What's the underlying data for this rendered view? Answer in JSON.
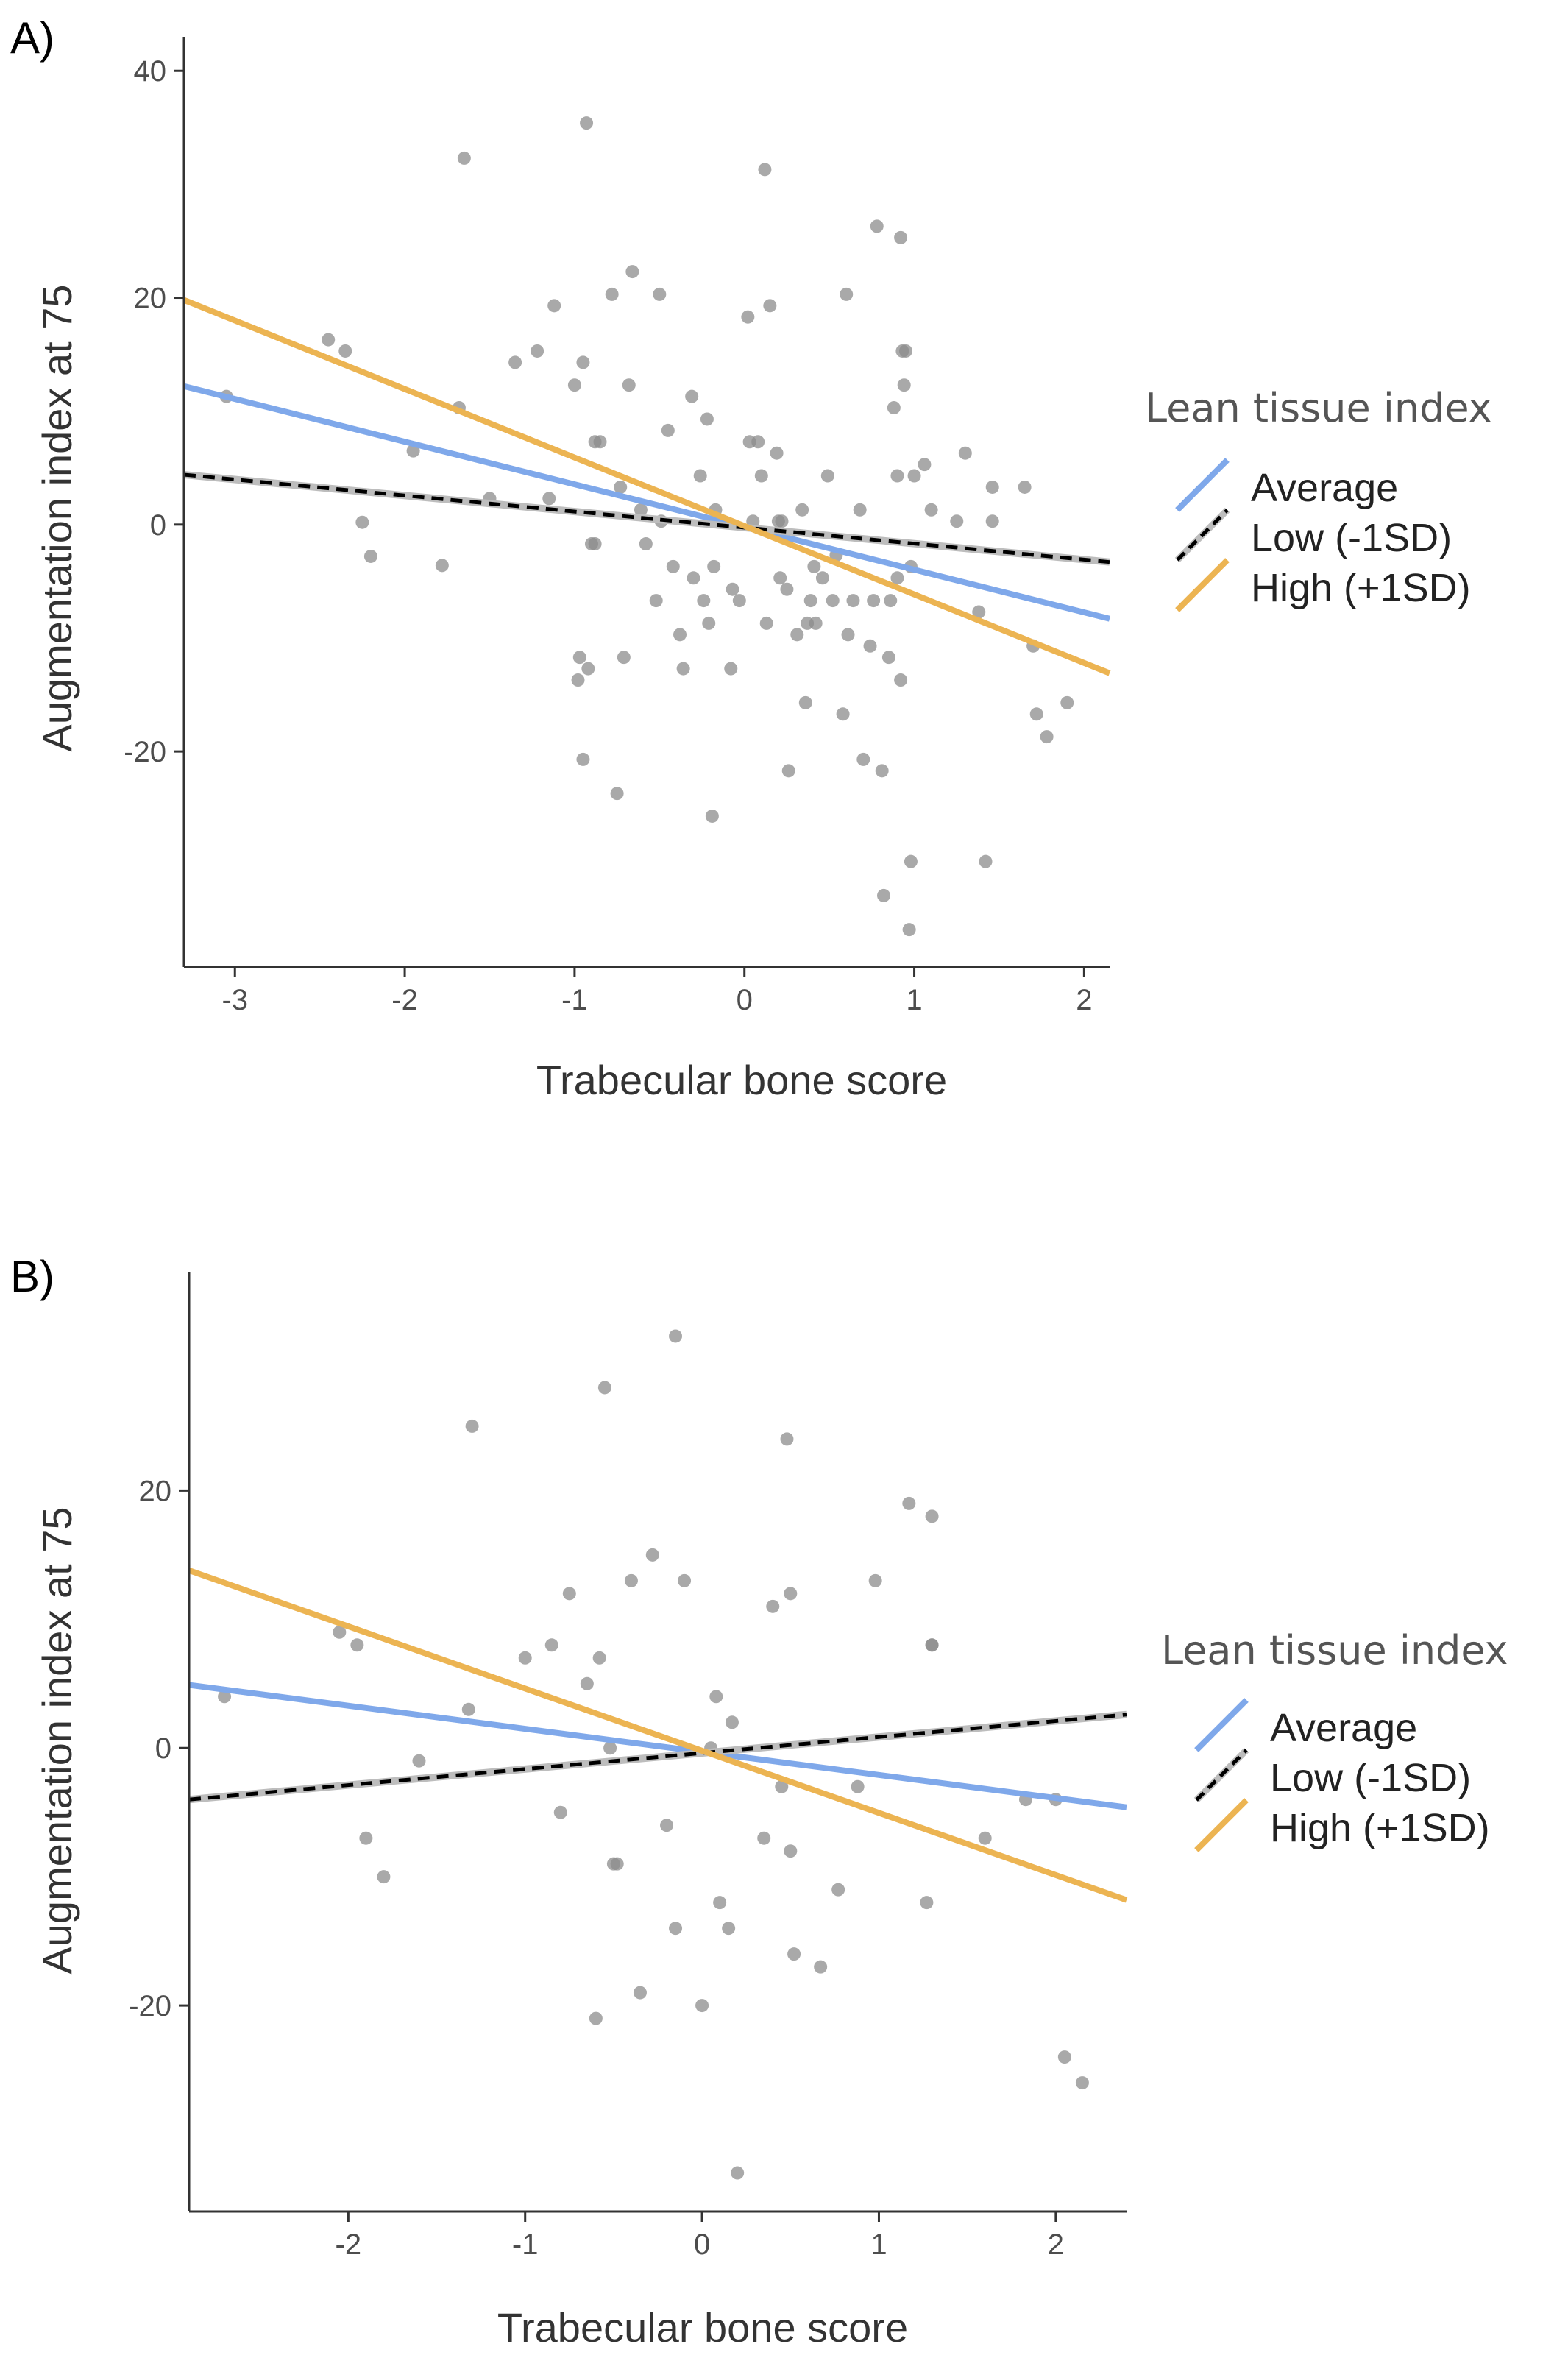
{
  "chart_data": [
    {
      "panel": "A)",
      "type": "scatter",
      "title": "",
      "xlabel": "Trabecular bone score",
      "ylabel": "Augmentation index at 75",
      "xlim": [
        -3.3,
        2.15
      ],
      "ylim": [
        -39,
        43
      ],
      "xticks": [
        -3,
        -2,
        -1,
        0,
        1,
        2
      ],
      "yticks": [
        -20,
        0,
        20,
        40
      ],
      "grid": false,
      "legend": {
        "title": "Lean tissue index",
        "placement": "right",
        "entries": [
          {
            "label": "Average",
            "color": "#7fa8ea",
            "style": "solid"
          },
          {
            "label": "Low (-1SD)",
            "color": "#000000",
            "style": "dashed"
          },
          {
            "label": "High (+1SD)",
            "color": "#ecb452",
            "style": "solid"
          }
        ]
      },
      "series": [
        {
          "name": "Average",
          "x": [
            -3.3,
            2.15
          ],
          "y": [
            12.2,
            -8.3
          ]
        },
        {
          "name": "Low (-1SD)",
          "x": [
            -3.3,
            2.15
          ],
          "y": [
            4.4,
            -3.3
          ]
        },
        {
          "name": "High (+1SD)",
          "x": [
            -3.3,
            2.15
          ],
          "y": [
            19.8,
            -13.1
          ]
        }
      ],
      "points": [
        [
          -3.05,
          11.3
        ],
        [
          -2.45,
          16.3
        ],
        [
          -2.35,
          15.3
        ],
        [
          -2.25,
          0.2
        ],
        [
          -2.2,
          -2.8
        ],
        [
          -1.95,
          6.5
        ],
        [
          -1.78,
          -3.6
        ],
        [
          -1.68,
          10.3
        ],
        [
          -1.65,
          32.3
        ],
        [
          -1.5,
          2.3
        ],
        [
          -1.35,
          14.3
        ],
        [
          -1.22,
          15.3
        ],
        [
          -1.15,
          2.3
        ],
        [
          -1.12,
          19.3
        ],
        [
          -1.0,
          12.3
        ],
        [
          -0.98,
          -13.7
        ],
        [
          -0.97,
          -11.7
        ],
        [
          -0.95,
          -20.7
        ],
        [
          -0.95,
          14.3
        ],
        [
          -0.93,
          35.4
        ],
        [
          -0.92,
          -12.7
        ],
        [
          -0.9,
          -1.7
        ],
        [
          -0.88,
          7.3
        ],
        [
          -0.88,
          -1.7
        ],
        [
          -0.85,
          7.3
        ],
        [
          -0.78,
          20.3
        ],
        [
          -0.75,
          -23.7
        ],
        [
          -0.73,
          3.3
        ],
        [
          -0.71,
          -11.7
        ],
        [
          -0.68,
          12.3
        ],
        [
          -0.66,
          22.3
        ],
        [
          -0.61,
          1.3
        ],
        [
          -0.58,
          -1.7
        ],
        [
          -0.52,
          -6.7
        ],
        [
          -0.5,
          20.3
        ],
        [
          -0.49,
          0.3
        ],
        [
          -0.45,
          8.3
        ],
        [
          -0.42,
          -3.7
        ],
        [
          -0.38,
          -9.7
        ],
        [
          -0.36,
          -12.7
        ],
        [
          -0.31,
          11.3
        ],
        [
          -0.3,
          -4.7
        ],
        [
          -0.26,
          4.3
        ],
        [
          -0.24,
          -6.7
        ],
        [
          -0.22,
          9.3
        ],
        [
          -0.21,
          -8.7
        ],
        [
          -0.19,
          -25.7
        ],
        [
          -0.18,
          -3.7
        ],
        [
          -0.17,
          1.3
        ],
        [
          -0.08,
          -12.7
        ],
        [
          -0.07,
          -5.7
        ],
        [
          -0.03,
          -6.7
        ],
        [
          0.02,
          18.3
        ],
        [
          0.03,
          7.3
        ],
        [
          0.05,
          0.3
        ],
        [
          0.08,
          7.3
        ],
        [
          0.1,
          4.3
        ],
        [
          0.12,
          31.3
        ],
        [
          0.13,
          -8.7
        ],
        [
          0.15,
          19.3
        ],
        [
          0.19,
          6.3
        ],
        [
          0.2,
          0.3
        ],
        [
          0.21,
          -4.7
        ],
        [
          0.22,
          0.3
        ],
        [
          0.25,
          -5.7
        ],
        [
          0.26,
          -21.7
        ],
        [
          0.31,
          -9.7
        ],
        [
          0.34,
          1.3
        ],
        [
          0.36,
          -15.7
        ],
        [
          0.37,
          -8.7
        ],
        [
          0.39,
          -6.7
        ],
        [
          0.41,
          -3.7
        ],
        [
          0.42,
          -8.7
        ],
        [
          0.46,
          -4.7
        ],
        [
          0.49,
          4.3
        ],
        [
          0.52,
          -6.7
        ],
        [
          0.54,
          -2.7
        ],
        [
          0.58,
          -16.7
        ],
        [
          0.6,
          20.3
        ],
        [
          0.61,
          -9.7
        ],
        [
          0.64,
          -6.7
        ],
        [
          0.68,
          1.3
        ],
        [
          0.7,
          -20.7
        ],
        [
          0.74,
          -10.7
        ],
        [
          0.76,
          -6.7
        ],
        [
          0.78,
          26.3
        ],
        [
          0.81,
          -21.7
        ],
        [
          0.82,
          -32.7
        ],
        [
          0.85,
          -11.7
        ],
        [
          0.86,
          -6.7
        ],
        [
          0.88,
          10.3
        ],
        [
          0.9,
          -4.7
        ],
        [
          0.9,
          4.3
        ],
        [
          0.92,
          25.3
        ],
        [
          0.92,
          -13.7
        ],
        [
          0.93,
          15.3
        ],
        [
          0.94,
          12.3
        ],
        [
          0.95,
          15.3
        ],
        [
          0.97,
          -35.7
        ],
        [
          0.98,
          -29.7
        ],
        [
          0.98,
          -3.7
        ],
        [
          1.0,
          4.3
        ],
        [
          1.06,
          5.3
        ],
        [
          1.1,
          1.3
        ],
        [
          1.25,
          0.3
        ],
        [
          1.3,
          6.3
        ],
        [
          1.38,
          -7.7
        ],
        [
          1.42,
          -29.7
        ],
        [
          1.46,
          3.3
        ],
        [
          1.46,
          0.3
        ],
        [
          1.65,
          3.3
        ],
        [
          1.7,
          -10.7
        ],
        [
          1.72,
          -16.7
        ],
        [
          1.78,
          -18.7
        ],
        [
          1.9,
          -15.7
        ]
      ]
    },
    {
      "panel": "B)",
      "type": "scatter",
      "title": "",
      "xlabel": "Trabecular bone score",
      "ylabel": "Augmentation index at 75",
      "xlim": [
        -2.9,
        2.4
      ],
      "ylim": [
        -36,
        37
      ],
      "xticks": [
        -2,
        -1,
        0,
        1,
        2
      ],
      "yticks": [
        -20,
        0,
        20
      ],
      "grid": false,
      "legend": {
        "title": "Lean tissue index",
        "placement": "right",
        "entries": [
          {
            "label": "Average",
            "color": "#7fa8ea",
            "style": "solid"
          },
          {
            "label": "Low (-1SD)",
            "color": "#000000",
            "style": "dashed"
          },
          {
            "label": "High (+1SD)",
            "color": "#ecb452",
            "style": "solid"
          }
        ]
      },
      "series": [
        {
          "name": "Average",
          "x": [
            -2.9,
            2.4
          ],
          "y": [
            4.9,
            -4.6
          ]
        },
        {
          "name": "Low (-1SD)",
          "x": [
            -2.9,
            2.4
          ],
          "y": [
            -4.0,
            2.6
          ]
        },
        {
          "name": "High (+1SD)",
          "x": [
            -2.9,
            2.4
          ],
          "y": [
            13.8,
            -11.8
          ]
        }
      ],
      "points": [
        [
          -2.7,
          4.0
        ],
        [
          -2.05,
          9.0
        ],
        [
          -1.95,
          8.0
        ],
        [
          -1.9,
          -7.0
        ],
        [
          -1.8,
          -10.0
        ],
        [
          -1.6,
          -1.0
        ],
        [
          -1.3,
          25.0
        ],
        [
          -1.32,
          3.0
        ],
        [
          -1.0,
          7.0
        ],
        [
          -0.85,
          8.0
        ],
        [
          -0.8,
          -5.0
        ],
        [
          -0.75,
          12.0
        ],
        [
          -0.65,
          5.0
        ],
        [
          -0.6,
          -21.0
        ],
        [
          -0.58,
          7.0
        ],
        [
          -0.55,
          28.0
        ],
        [
          -0.5,
          -9.0
        ],
        [
          -0.52,
          0.0
        ],
        [
          -0.48,
          -9.0
        ],
        [
          -0.4,
          13.0
        ],
        [
          -0.35,
          -19.0
        ],
        [
          -0.28,
          15.0
        ],
        [
          -0.2,
          -6.0
        ],
        [
          -0.15,
          -14.0
        ],
        [
          -0.15,
          32.0
        ],
        [
          -0.1,
          13.0
        ],
        [
          0.0,
          -20.0
        ],
        [
          0.05,
          0.0
        ],
        [
          0.08,
          4.0
        ],
        [
          0.1,
          -12.0
        ],
        [
          0.15,
          -14.0
        ],
        [
          0.17,
          2.0
        ],
        [
          0.2,
          -33.0
        ],
        [
          0.35,
          -7.0
        ],
        [
          0.4,
          11.0
        ],
        [
          0.45,
          -3.0
        ],
        [
          0.48,
          24.0
        ],
        [
          0.5,
          12.0
        ],
        [
          0.5,
          -8.0
        ],
        [
          0.52,
          -16.0
        ],
        [
          0.67,
          -17.0
        ],
        [
          0.77,
          -11.0
        ],
        [
          0.88,
          -3.0
        ],
        [
          0.98,
          13.0
        ],
        [
          1.17,
          19.0
        ],
        [
          1.27,
          -12.0
        ],
        [
          1.3,
          8.0
        ],
        [
          1.3,
          18.0
        ],
        [
          1.3,
          8.0
        ],
        [
          1.6,
          -7.0
        ],
        [
          1.83,
          -4.0
        ],
        [
          2.0,
          -4.0
        ],
        [
          2.05,
          -24.0
        ],
        [
          2.15,
          -26.0
        ]
      ]
    }
  ]
}
